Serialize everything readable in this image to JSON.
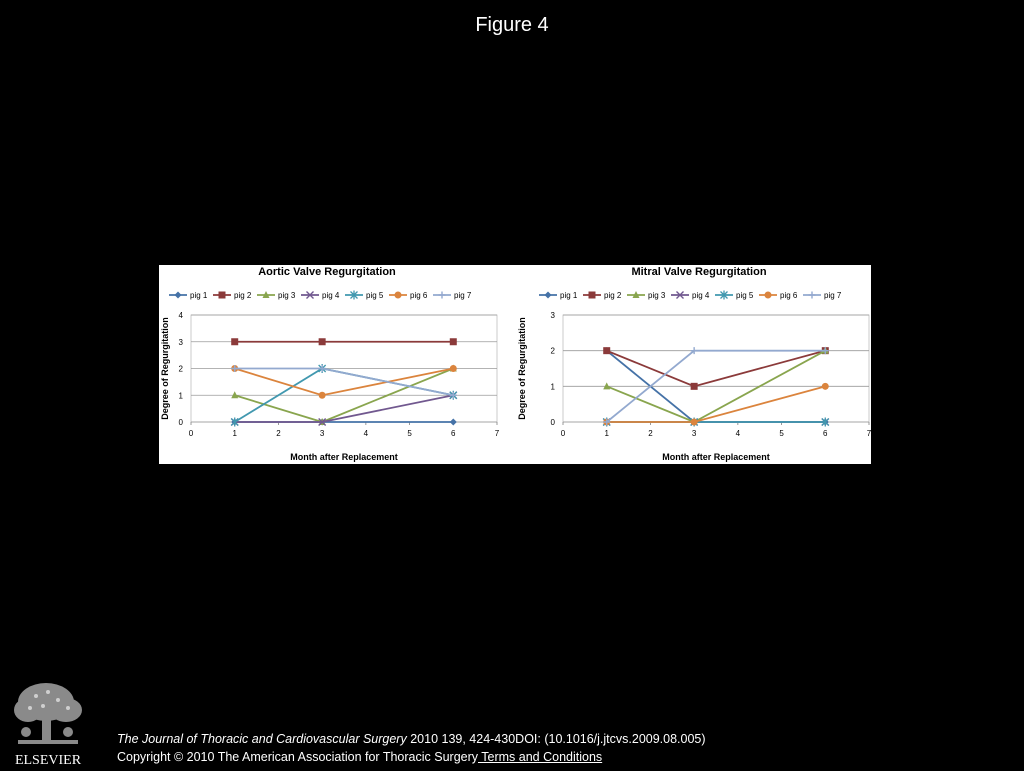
{
  "figure": {
    "title": "Figure 4"
  },
  "colors": {
    "background": "#000000",
    "panel": "#ffffff",
    "series": [
      "#4572a7",
      "#8b3a3a",
      "#89a54e",
      "#71588f",
      "#4198af",
      "#db843d",
      "#93a9cf"
    ]
  },
  "chart_data": [
    {
      "type": "line",
      "title": "Aortic Valve Regurgitation",
      "xlabel": "Month after Replacement",
      "ylabel": "Degree of Regurgitation",
      "xlim": [
        0,
        7
      ],
      "ylim": [
        0,
        4
      ],
      "xticks": [
        "0",
        "1",
        "2",
        "3",
        "4",
        "5",
        "6",
        "7"
      ],
      "yticks": [
        "0",
        "1",
        "2",
        "3",
        "4"
      ],
      "x": [
        1,
        3,
        6
      ],
      "grid": true,
      "legend_position": "top",
      "series": [
        {
          "name": "pig 1",
          "marker": "diamond",
          "values": [
            0,
            0,
            0
          ]
        },
        {
          "name": "pig 2",
          "marker": "square",
          "values": [
            3,
            3,
            3
          ]
        },
        {
          "name": "pig 3",
          "marker": "triangle",
          "values": [
            1,
            0,
            2
          ]
        },
        {
          "name": "pig 4",
          "marker": "x",
          "values": [
            0,
            0,
            1
          ]
        },
        {
          "name": "pig 5",
          "marker": "star",
          "values": [
            0,
            2,
            1
          ]
        },
        {
          "name": "pig 6",
          "marker": "circle",
          "values": [
            2,
            1,
            2
          ]
        },
        {
          "name": "pig 7",
          "marker": "plus",
          "values": [
            2,
            2,
            1
          ]
        }
      ]
    },
    {
      "type": "line",
      "title": "Mitral Valve Regurgitation",
      "xlabel": "Month after Replacement",
      "ylabel": "Degree of Regurgitation",
      "xlim": [
        0,
        7
      ],
      "ylim": [
        0,
        3
      ],
      "xticks": [
        "0",
        "1",
        "2",
        "3",
        "4",
        "5",
        "6",
        "7"
      ],
      "yticks": [
        "0",
        "1",
        "2",
        "3"
      ],
      "x": [
        1,
        3,
        6
      ],
      "grid": true,
      "legend_position": "top",
      "series": [
        {
          "name": "pig 1",
          "marker": "diamond",
          "values": [
            2,
            0,
            0
          ]
        },
        {
          "name": "pig 2",
          "marker": "square",
          "values": [
            2,
            1,
            2
          ]
        },
        {
          "name": "pig 3",
          "marker": "triangle",
          "values": [
            1,
            0,
            2
          ]
        },
        {
          "name": "pig 4",
          "marker": "x",
          "values": [
            0,
            0,
            0
          ]
        },
        {
          "name": "pig 5",
          "marker": "star",
          "values": [
            0,
            0,
            0
          ]
        },
        {
          "name": "pig 6",
          "marker": "circle",
          "values": [
            0,
            0,
            1
          ]
        },
        {
          "name": "pig 7",
          "marker": "plus",
          "values": [
            0,
            2,
            2
          ]
        }
      ]
    }
  ],
  "footer": {
    "journal": "The Journal of Thoracic and Cardiovascular Surgery",
    "citation": " 2010 139, 424-430DOI: (10.1016/j.jtcvs.2009.08.005)",
    "copyright": "Copyright © 2010 The American Association for Thoracic Surgery",
    "terms_link": " Terms and Conditions"
  },
  "logo": {
    "text": "ELSEVIER",
    "icon": "elsevier-tree-icon"
  }
}
